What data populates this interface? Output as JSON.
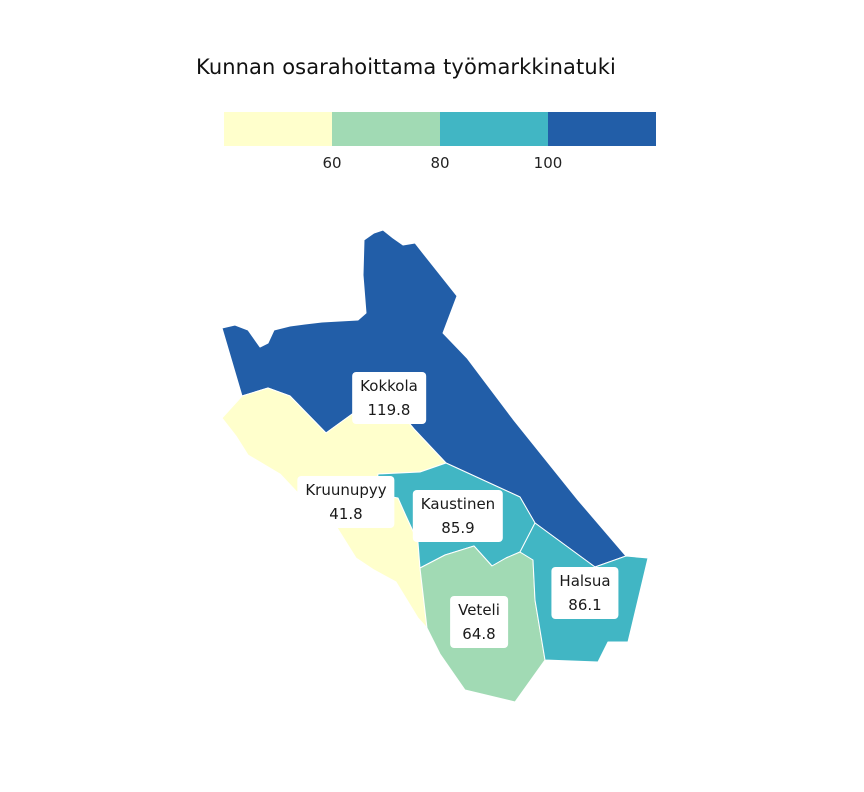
{
  "title": "Kunnan osarahoittama työmarkkinatuki",
  "legend": {
    "colors": [
      "#ffffcc",
      "#a1dab4",
      "#41b6c4",
      "#225ea8"
    ],
    "ticks": [
      "60",
      "80",
      "100"
    ]
  },
  "regions": {
    "kokkola": {
      "name": "Kokkola",
      "value": "119.8",
      "color": "#225ea8"
    },
    "kruunupyy": {
      "name": "Kruunupyy",
      "value": "41.8",
      "color": "#ffffcc"
    },
    "kaustinen": {
      "name": "Kaustinen",
      "value": "85.9",
      "color": "#41b6c4"
    },
    "veteli": {
      "name": "Veteli",
      "value": "64.8",
      "color": "#a1dab4"
    },
    "halsua": {
      "name": "Halsua",
      "value": "86.1",
      "color": "#41b6c4"
    }
  }
}
